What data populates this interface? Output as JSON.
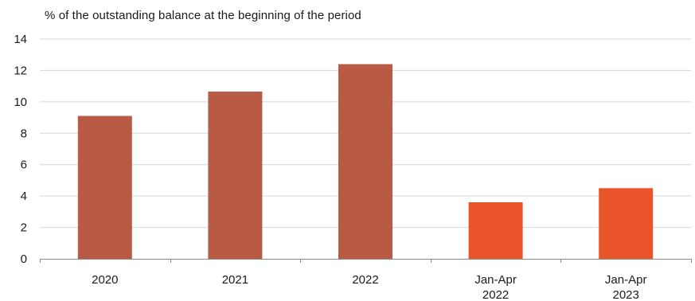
{
  "chart_data": {
    "type": "bar",
    "ylabel": "% of the outstanding balance at the beginning of the period",
    "categories": [
      [
        "2020"
      ],
      [
        "2021"
      ],
      [
        "2022"
      ],
      [
        "Jan-Apr",
        "2022"
      ],
      [
        "Jan-Apr",
        "2023"
      ]
    ],
    "values": [
      9.1,
      10.65,
      12.4,
      3.6,
      4.5
    ],
    "bar_colors": [
      "#b95a45",
      "#b95a45",
      "#b95a45",
      "#e9542b",
      "#e9542b"
    ],
    "ylim": [
      0,
      14
    ],
    "yticks": [
      0,
      2,
      4,
      6,
      8,
      10,
      12,
      14
    ],
    "grid": true
  }
}
